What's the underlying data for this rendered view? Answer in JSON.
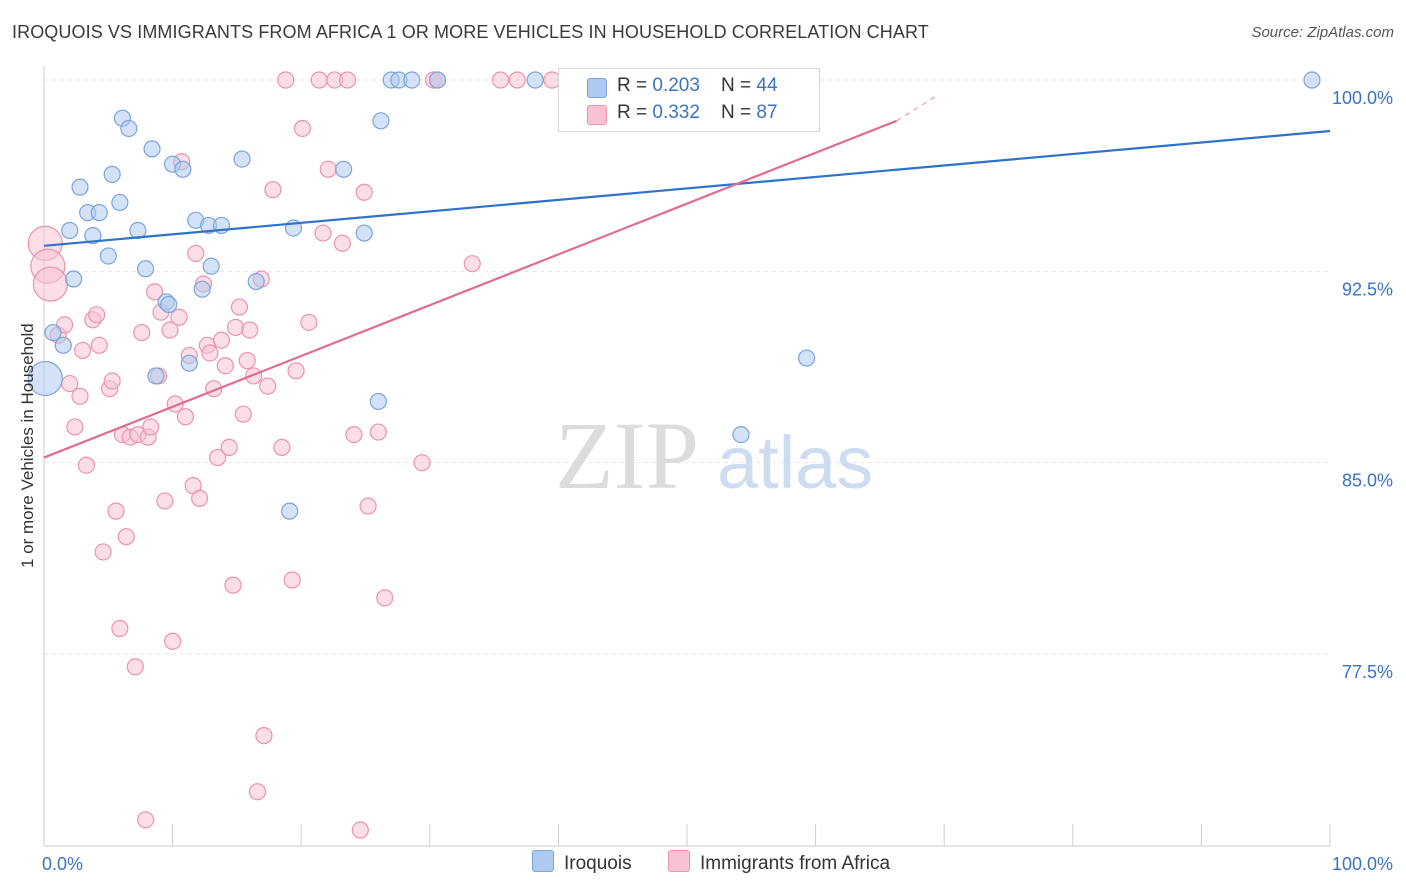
{
  "title": "IROQUOIS VS IMMIGRANTS FROM AFRICA 1 OR MORE VEHICLES IN HOUSEHOLD CORRELATION CHART",
  "source": "Source: ZipAtlas.com",
  "watermark": {
    "zip": "ZIP",
    "atlas": "atlas"
  },
  "colors": {
    "iroquois_fill": "#aecbef",
    "iroquois_stroke": "#7ba4dc",
    "iroquois_line": "#2f72cc",
    "africa_fill": "#f7c3d2",
    "africa_stroke": "#eb93ae",
    "africa_line": "#e06b94",
    "axis_text": "#3b73c4",
    "grid": "#e6e6e6"
  },
  "legend": {
    "rows": [
      {
        "r_label": "R = ",
        "r_value": "0.203",
        "n_label": "N = ",
        "n_value": "44"
      },
      {
        "r_label": "R = ",
        "r_value": "0.332",
        "n_label": "N = ",
        "n_value": "87"
      }
    ]
  },
  "bottom_legend": [
    "Iroquois",
    "Immigrants from Africa"
  ],
  "chart_data": {
    "type": "scatter",
    "title": "IROQUOIS VS IMMIGRANTS FROM AFRICA 1 OR MORE VEHICLES IN HOUSEHOLD CORRELATION CHART",
    "xlabel": "",
    "ylabel": "1 or more Vehicles in Household",
    "xlim": [
      0,
      100
    ],
    "ylim": [
      70.4,
      100.8
    ],
    "x_tick_labels": [
      "0.0%",
      "100.0%"
    ],
    "y_ticks": [
      77.5,
      85.0,
      92.5,
      100.0
    ],
    "y_tick_labels": [
      "77.5%",
      "85.0%",
      "92.5%",
      "100.0%"
    ],
    "series": [
      {
        "name": "Iroquois",
        "r": 0.203,
        "n": 44,
        "trend": {
          "x": [
            0,
            100
          ],
          "y": [
            93.5,
            98.0
          ]
        },
        "points": [
          {
            "x": 0.1,
            "y": 88.3,
            "big": true
          },
          {
            "x": 0.7,
            "y": 90.1
          },
          {
            "x": 1.5,
            "y": 89.6
          },
          {
            "x": 2.0,
            "y": 94.1
          },
          {
            "x": 2.3,
            "y": 92.2
          },
          {
            "x": 2.8,
            "y": 95.8
          },
          {
            "x": 3.4,
            "y": 94.8
          },
          {
            "x": 3.8,
            "y": 93.9
          },
          {
            "x": 4.3,
            "y": 94.8
          },
          {
            "x": 5.0,
            "y": 93.1
          },
          {
            "x": 5.3,
            "y": 96.3
          },
          {
            "x": 5.9,
            "y": 95.2
          },
          {
            "x": 6.1,
            "y": 98.5
          },
          {
            "x": 6.6,
            "y": 98.1
          },
          {
            "x": 7.3,
            "y": 94.1
          },
          {
            "x": 7.9,
            "y": 92.6
          },
          {
            "x": 8.4,
            "y": 97.3
          },
          {
            "x": 8.7,
            "y": 88.4
          },
          {
            "x": 9.5,
            "y": 91.3
          },
          {
            "x": 9.7,
            "y": 91.2
          },
          {
            "x": 10.0,
            "y": 96.7
          },
          {
            "x": 10.8,
            "y": 96.5
          },
          {
            "x": 11.3,
            "y": 88.9
          },
          {
            "x": 11.8,
            "y": 94.5
          },
          {
            "x": 12.3,
            "y": 91.8
          },
          {
            "x": 12.8,
            "y": 94.3
          },
          {
            "x": 13.0,
            "y": 92.7
          },
          {
            "x": 13.8,
            "y": 94.3
          },
          {
            "x": 15.4,
            "y": 96.9
          },
          {
            "x": 16.5,
            "y": 92.1
          },
          {
            "x": 19.1,
            "y": 83.1
          },
          {
            "x": 19.4,
            "y": 94.2
          },
          {
            "x": 23.3,
            "y": 96.5
          },
          {
            "x": 24.9,
            "y": 94.0
          },
          {
            "x": 26.0,
            "y": 87.4
          },
          {
            "x": 26.2,
            "y": 98.4
          },
          {
            "x": 27.0,
            "y": 100.0
          },
          {
            "x": 27.6,
            "y": 100.0
          },
          {
            "x": 28.6,
            "y": 100.0
          },
          {
            "x": 30.6,
            "y": 100.0
          },
          {
            "x": 38.2,
            "y": 100.0
          },
          {
            "x": 54.2,
            "y": 86.1
          },
          {
            "x": 59.3,
            "y": 89.1
          },
          {
            "x": 98.6,
            "y": 100.0
          }
        ]
      },
      {
        "name": "Immigrants from Africa",
        "r": 0.332,
        "n": 87,
        "trend": {
          "x": [
            0,
            66.3
          ],
          "y": [
            85.2,
            98.4
          ]
        },
        "trend_dashed": {
          "x": [
            66.3,
            66.7
          ],
          "y": [
            98.4,
            100.0
          ]
        },
        "points": [
          {
            "x": 0.1,
            "y": 93.6,
            "big": true
          },
          {
            "x": 0.3,
            "y": 92.7,
            "big": true
          },
          {
            "x": 0.5,
            "y": 92.0,
            "big": true
          },
          {
            "x": 1.1,
            "y": 90.0
          },
          {
            "x": 1.6,
            "y": 90.4
          },
          {
            "x": 2.0,
            "y": 88.1
          },
          {
            "x": 2.4,
            "y": 86.4
          },
          {
            "x": 2.8,
            "y": 87.6
          },
          {
            "x": 3.0,
            "y": 89.4
          },
          {
            "x": 3.3,
            "y": 84.9
          },
          {
            "x": 3.8,
            "y": 90.6
          },
          {
            "x": 4.1,
            "y": 90.8
          },
          {
            "x": 4.3,
            "y": 89.6
          },
          {
            "x": 4.6,
            "y": 81.5
          },
          {
            "x": 5.1,
            "y": 87.9
          },
          {
            "x": 5.3,
            "y": 88.2
          },
          {
            "x": 5.6,
            "y": 83.1
          },
          {
            "x": 5.9,
            "y": 78.5
          },
          {
            "x": 6.1,
            "y": 86.1
          },
          {
            "x": 6.4,
            "y": 82.1
          },
          {
            "x": 6.7,
            "y": 86.0
          },
          {
            "x": 7.1,
            "y": 77.0
          },
          {
            "x": 7.3,
            "y": 86.1
          },
          {
            "x": 7.6,
            "y": 90.1
          },
          {
            "x": 7.9,
            "y": 71.0
          },
          {
            "x": 8.1,
            "y": 86.0
          },
          {
            "x": 8.3,
            "y": 86.4
          },
          {
            "x": 8.6,
            "y": 91.7
          },
          {
            "x": 8.9,
            "y": 88.4
          },
          {
            "x": 9.1,
            "y": 90.9
          },
          {
            "x": 9.4,
            "y": 83.5
          },
          {
            "x": 9.8,
            "y": 90.2
          },
          {
            "x": 10.0,
            "y": 78.0
          },
          {
            "x": 10.2,
            "y": 87.3
          },
          {
            "x": 10.5,
            "y": 90.7
          },
          {
            "x": 10.7,
            "y": 96.8
          },
          {
            "x": 11.0,
            "y": 86.8
          },
          {
            "x": 11.3,
            "y": 89.2
          },
          {
            "x": 11.6,
            "y": 84.1
          },
          {
            "x": 11.8,
            "y": 93.2
          },
          {
            "x": 12.1,
            "y": 83.6
          },
          {
            "x": 12.4,
            "y": 92.0
          },
          {
            "x": 12.7,
            "y": 89.6
          },
          {
            "x": 12.9,
            "y": 89.3
          },
          {
            "x": 13.2,
            "y": 87.9
          },
          {
            "x": 13.5,
            "y": 85.2
          },
          {
            "x": 13.8,
            "y": 89.8
          },
          {
            "x": 14.1,
            "y": 88.8
          },
          {
            "x": 14.4,
            "y": 85.6
          },
          {
            "x": 14.7,
            "y": 80.2
          },
          {
            "x": 14.9,
            "y": 90.3
          },
          {
            "x": 15.2,
            "y": 91.1
          },
          {
            "x": 15.5,
            "y": 86.9
          },
          {
            "x": 15.8,
            "y": 89.0
          },
          {
            "x": 16.0,
            "y": 90.2
          },
          {
            "x": 16.3,
            "y": 88.4
          },
          {
            "x": 16.6,
            "y": 72.1
          },
          {
            "x": 16.9,
            "y": 92.2
          },
          {
            "x": 17.1,
            "y": 74.3
          },
          {
            "x": 17.4,
            "y": 88.0
          },
          {
            "x": 17.8,
            "y": 95.7
          },
          {
            "x": 18.5,
            "y": 85.6
          },
          {
            "x": 18.8,
            "y": 100.0
          },
          {
            "x": 19.3,
            "y": 80.4
          },
          {
            "x": 19.6,
            "y": 88.6
          },
          {
            "x": 20.1,
            "y": 98.1
          },
          {
            "x": 20.6,
            "y": 90.5
          },
          {
            "x": 21.4,
            "y": 100.0
          },
          {
            "x": 21.7,
            "y": 94.0
          },
          {
            "x": 22.1,
            "y": 96.5
          },
          {
            "x": 22.6,
            "y": 100.0
          },
          {
            "x": 23.2,
            "y": 93.6
          },
          {
            "x": 23.6,
            "y": 100.0
          },
          {
            "x": 24.1,
            "y": 86.1
          },
          {
            "x": 24.6,
            "y": 70.6
          },
          {
            "x": 24.9,
            "y": 95.6
          },
          {
            "x": 25.2,
            "y": 83.3
          },
          {
            "x": 26.0,
            "y": 86.2
          },
          {
            "x": 26.5,
            "y": 79.7
          },
          {
            "x": 29.4,
            "y": 85.0
          },
          {
            "x": 30.3,
            "y": 100.0
          },
          {
            "x": 30.6,
            "y": 100.0
          },
          {
            "x": 33.3,
            "y": 92.8
          },
          {
            "x": 35.5,
            "y": 100.0
          },
          {
            "x": 36.8,
            "y": 100.0
          },
          {
            "x": 39.5,
            "y": 100.0
          },
          {
            "x": 41.7,
            "y": 100.0
          }
        ]
      }
    ]
  }
}
